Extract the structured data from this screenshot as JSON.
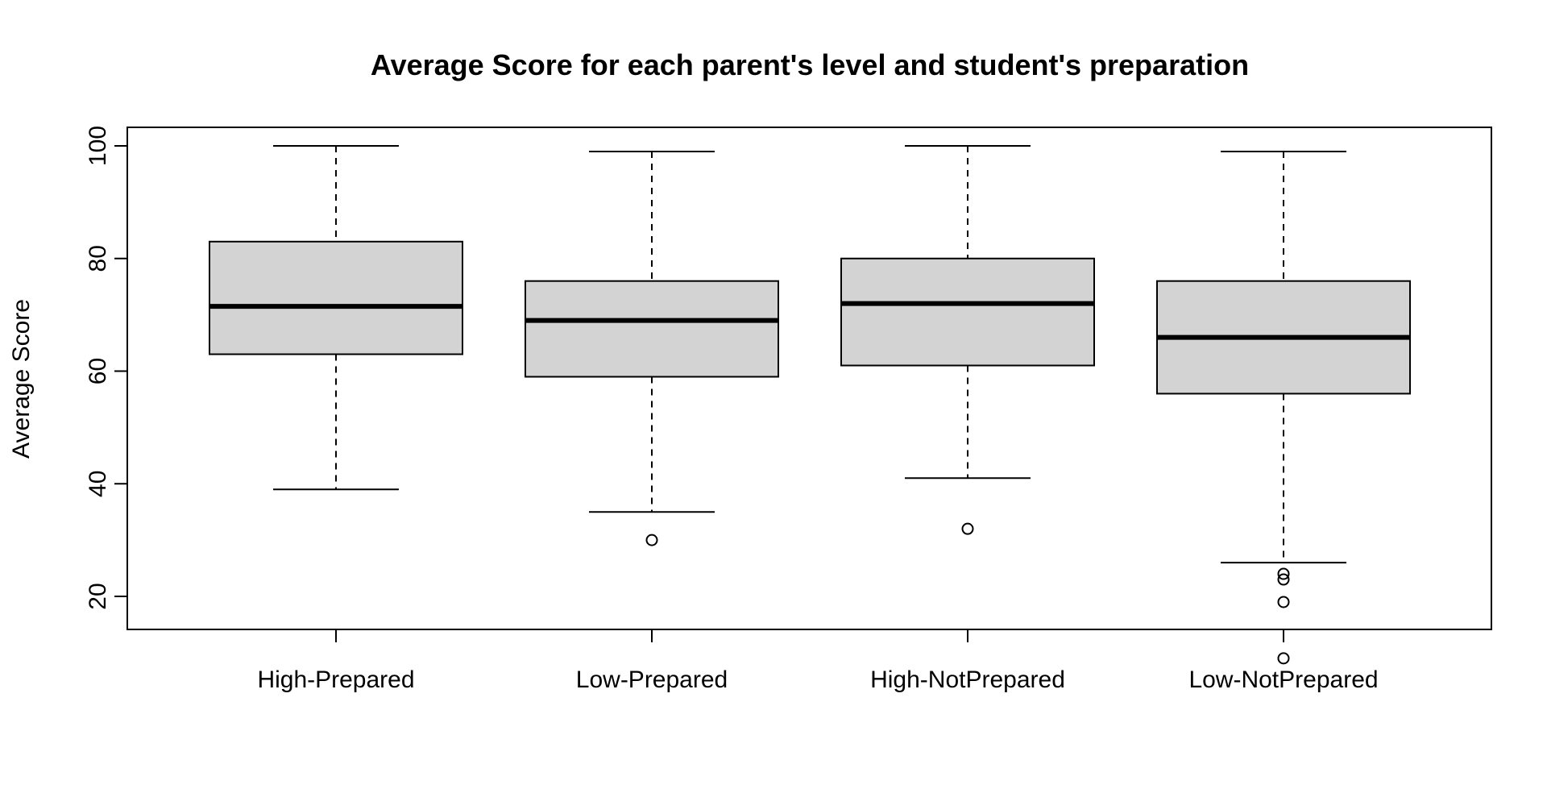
{
  "chart_data": {
    "type": "boxplot",
    "title": "Average Score for each parent's level and student's preparation",
    "xlabel": "",
    "ylabel": "Average Score",
    "y_ticks": [
      "20",
      "40",
      "60",
      "80",
      "100"
    ],
    "ylim": [
      5,
      103.5
    ],
    "grid": false,
    "box_fill": "#d3d3d3",
    "line_color": "#000000",
    "categories": [
      "High-Prepared",
      "Low-Prepared",
      "High-NotPrepared",
      "Low-NotPrepared"
    ],
    "boxes": [
      {
        "category": "High-Prepared",
        "whisker_low": 39,
        "q1": 63,
        "median": 71.5,
        "q3": 83,
        "whisker_high": 100,
        "outliers": []
      },
      {
        "category": "Low-Prepared",
        "whisker_low": 35,
        "q1": 59,
        "median": 69,
        "q3": 76,
        "whisker_high": 99,
        "outliers": [
          30
        ]
      },
      {
        "category": "High-NotPrepared",
        "whisker_low": 41,
        "q1": 61,
        "median": 72,
        "q3": 80,
        "whisker_high": 100,
        "outliers": [
          32
        ]
      },
      {
        "category": "Low-NotPrepared",
        "whisker_low": 26,
        "q1": 56,
        "median": 66,
        "q3": 76,
        "whisker_high": 99,
        "outliers": [
          24,
          23,
          19,
          9
        ]
      }
    ]
  }
}
